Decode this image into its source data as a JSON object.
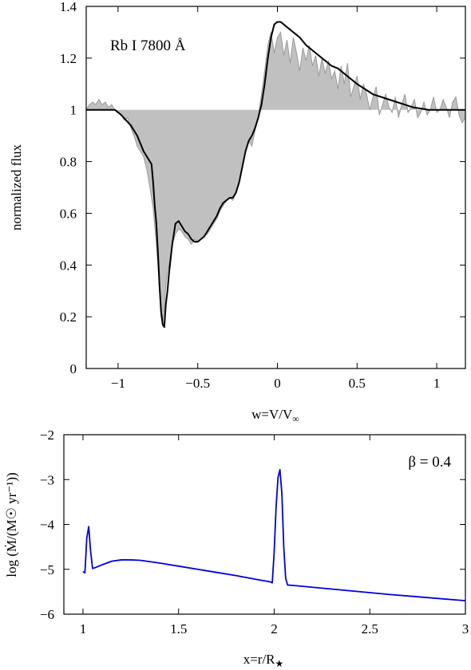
{
  "chart_data": [
    {
      "type": "area",
      "annotation": "Rb I 7800 Å",
      "title": "",
      "xlabel": {
        "main": "w=V/V",
        "sub": "∞"
      },
      "ylabel": "normalized flux",
      "xlim": [
        -1.2,
        1.18
      ],
      "ylim": [
        0,
        1.4
      ],
      "xticks": [
        -1,
        -0.5,
        0,
        0.5,
        1
      ],
      "xtick_labels": [
        "−1",
        "−0.5",
        "0",
        "0.5",
        "1"
      ],
      "yticks": [
        0,
        0.2,
        0.4,
        0.6,
        0.8,
        1,
        1.2,
        1.4
      ],
      "ytick_labels": [
        "0",
        "0.2",
        "0.4",
        "0.6",
        "0.8",
        "1",
        "1.2",
        "1.4"
      ],
      "baseline": 1,
      "series": [
        {
          "kind": "observed-filled",
          "color": "#c0c0c0",
          "stroke": "#9a9a9a",
          "x": [
            -1.2,
            -1.18,
            -1.16,
            -1.14,
            -1.12,
            -1.1,
            -1.08,
            -1.06,
            -1.04,
            -1.02,
            -1.0,
            -0.98,
            -0.96,
            -0.94,
            -0.92,
            -0.9,
            -0.88,
            -0.86,
            -0.84,
            -0.82,
            -0.8,
            -0.78,
            -0.76,
            -0.75,
            -0.74,
            -0.73,
            -0.72,
            -0.71,
            -0.7,
            -0.69,
            -0.68,
            -0.66,
            -0.64,
            -0.62,
            -0.6,
            -0.58,
            -0.56,
            -0.54,
            -0.52,
            -0.5,
            -0.48,
            -0.46,
            -0.44,
            -0.42,
            -0.4,
            -0.38,
            -0.36,
            -0.34,
            -0.32,
            -0.3,
            -0.28,
            -0.26,
            -0.24,
            -0.22,
            -0.2,
            -0.18,
            -0.16,
            -0.14,
            -0.12,
            -0.1,
            -0.08,
            -0.06,
            -0.04,
            -0.02,
            0.0,
            0.02,
            0.04,
            0.06,
            0.08,
            0.1,
            0.12,
            0.14,
            0.16,
            0.18,
            0.2,
            0.22,
            0.24,
            0.26,
            0.28,
            0.3,
            0.32,
            0.34,
            0.36,
            0.38,
            0.4,
            0.42,
            0.44,
            0.46,
            0.48,
            0.5,
            0.52,
            0.54,
            0.56,
            0.58,
            0.6,
            0.62,
            0.64,
            0.66,
            0.68,
            0.7,
            0.72,
            0.74,
            0.76,
            0.78,
            0.8,
            0.82,
            0.84,
            0.86,
            0.88,
            0.9,
            0.92,
            0.94,
            0.96,
            0.98,
            1.0,
            1.02,
            1.04,
            1.06,
            1.08,
            1.1,
            1.12,
            1.14,
            1.16,
            1.18
          ],
          "y": [
            1.0,
            1.02,
            1.03,
            1.02,
            1.04,
            1.02,
            1.03,
            1.01,
            1.02,
            1.0,
            0.99,
            0.98,
            0.96,
            0.97,
            0.93,
            0.9,
            0.86,
            0.84,
            0.82,
            0.77,
            0.7,
            0.62,
            0.48,
            0.4,
            0.3,
            0.2,
            0.17,
            0.24,
            0.32,
            0.38,
            0.4,
            0.48,
            0.52,
            0.54,
            0.53,
            0.51,
            0.5,
            0.48,
            0.5,
            0.49,
            0.5,
            0.51,
            0.52,
            0.54,
            0.56,
            0.58,
            0.61,
            0.63,
            0.65,
            0.66,
            0.65,
            0.68,
            0.72,
            0.78,
            0.84,
            0.88,
            0.86,
            0.92,
            0.98,
            1.06,
            1.15,
            1.25,
            1.3,
            1.22,
            1.28,
            1.3,
            1.21,
            1.27,
            1.18,
            1.28,
            1.22,
            1.15,
            1.24,
            1.19,
            1.25,
            1.17,
            1.21,
            1.13,
            1.2,
            1.14,
            1.19,
            1.12,
            1.15,
            1.08,
            1.17,
            1.1,
            1.18,
            1.05,
            1.09,
            1.13,
            1.04,
            1.1,
            1.06,
            1.0,
            1.05,
            1.09,
            0.98,
            1.02,
            1.06,
            1.01,
            0.99,
            1.05,
            0.97,
            1.02,
            1.06,
            0.99,
            1.01,
            1.04,
            0.97,
            0.99,
            1.03,
            0.98,
            1.0,
            1.05,
            0.99,
            1.0,
            1.04,
            1.01,
            0.97,
            1.03,
            1.05,
            0.98,
            0.95,
            0.97
          ]
        },
        {
          "kind": "model-line",
          "color": "#000000",
          "x": [
            -1.2,
            -1.1,
            -1.05,
            -1.02,
            -1.0,
            -0.98,
            -0.95,
            -0.92,
            -0.9,
            -0.88,
            -0.86,
            -0.84,
            -0.82,
            -0.8,
            -0.79,
            -0.78,
            -0.77,
            -0.76,
            -0.75,
            -0.74,
            -0.73,
            -0.72,
            -0.71,
            -0.7,
            -0.69,
            -0.68,
            -0.66,
            -0.64,
            -0.62,
            -0.6,
            -0.58,
            -0.56,
            -0.54,
            -0.52,
            -0.5,
            -0.48,
            -0.46,
            -0.44,
            -0.42,
            -0.4,
            -0.38,
            -0.36,
            -0.34,
            -0.32,
            -0.3,
            -0.28,
            -0.26,
            -0.24,
            -0.22,
            -0.2,
            -0.18,
            -0.16,
            -0.14,
            -0.12,
            -0.1,
            -0.08,
            -0.06,
            -0.04,
            -0.02,
            0.0,
            0.02,
            0.04,
            0.06,
            0.08,
            0.1,
            0.14,
            0.18,
            0.22,
            0.26,
            0.3,
            0.34,
            0.38,
            0.42,
            0.46,
            0.5,
            0.55,
            0.6,
            0.65,
            0.7,
            0.75,
            0.8,
            0.85,
            0.9,
            0.95,
            1.0,
            1.05,
            1.1,
            1.18
          ],
          "y": [
            1.0,
            1.0,
            1.0,
            1.0,
            0.99,
            0.98,
            0.96,
            0.94,
            0.92,
            0.9,
            0.87,
            0.84,
            0.82,
            0.8,
            0.79,
            0.72,
            0.63,
            0.56,
            0.45,
            0.32,
            0.22,
            0.17,
            0.16,
            0.25,
            0.3,
            0.37,
            0.48,
            0.56,
            0.57,
            0.55,
            0.53,
            0.52,
            0.5,
            0.49,
            0.49,
            0.5,
            0.51,
            0.53,
            0.55,
            0.57,
            0.59,
            0.62,
            0.64,
            0.65,
            0.66,
            0.66,
            0.68,
            0.72,
            0.78,
            0.84,
            0.88,
            0.9,
            0.93,
            0.97,
            1.02,
            1.1,
            1.2,
            1.28,
            1.33,
            1.34,
            1.34,
            1.33,
            1.32,
            1.31,
            1.3,
            1.28,
            1.25,
            1.23,
            1.21,
            1.19,
            1.17,
            1.16,
            1.14,
            1.12,
            1.1,
            1.08,
            1.06,
            1.05,
            1.04,
            1.03,
            1.02,
            1.01,
            1.005,
            1.0,
            1.0,
            1.0,
            1.0,
            1.0
          ]
        }
      ]
    },
    {
      "type": "line",
      "annotation": "β = 0.4",
      "title": "",
      "xlabel": {
        "main": "x=r/R",
        "sub": "★"
      },
      "ylabel": "log (Ṁ/(M☉ yr⁻¹))",
      "xlim": [
        0.9,
        3.0
      ],
      "ylim": [
        -6,
        -2
      ],
      "xticks": [
        1,
        1.5,
        2,
        2.5,
        3
      ],
      "xtick_labels": [
        "1",
        "1.5",
        "2",
        "2.5",
        "3"
      ],
      "yticks": [
        -6,
        -5,
        -4,
        -3,
        -2
      ],
      "ytick_labels": [
        "−6",
        "−5",
        "−4",
        "−3",
        "−2"
      ],
      "series": [
        {
          "color": "#0000dd",
          "x": [
            1.0,
            1.01,
            1.02,
            1.03,
            1.04,
            1.05,
            1.06,
            1.1,
            1.15,
            1.2,
            1.25,
            1.3,
            1.4,
            1.5,
            1.6,
            1.7,
            1.8,
            1.9,
            1.98,
            1.99,
            2.0,
            2.01,
            2.02,
            2.03,
            2.04,
            2.05,
            2.06,
            2.07,
            2.1,
            2.2,
            2.4,
            2.6,
            2.8,
            3.0
          ],
          "y": [
            -5.05,
            -5.08,
            -4.3,
            -4.05,
            -4.6,
            -4.98,
            -4.97,
            -4.9,
            -4.82,
            -4.79,
            -4.79,
            -4.8,
            -4.86,
            -4.93,
            -5.0,
            -5.07,
            -5.14,
            -5.22,
            -5.28,
            -5.3,
            -4.6,
            -3.6,
            -2.95,
            -2.78,
            -3.3,
            -4.5,
            -5.2,
            -5.35,
            -5.36,
            -5.4,
            -5.48,
            -5.56,
            -5.63,
            -5.7
          ]
        }
      ]
    }
  ]
}
